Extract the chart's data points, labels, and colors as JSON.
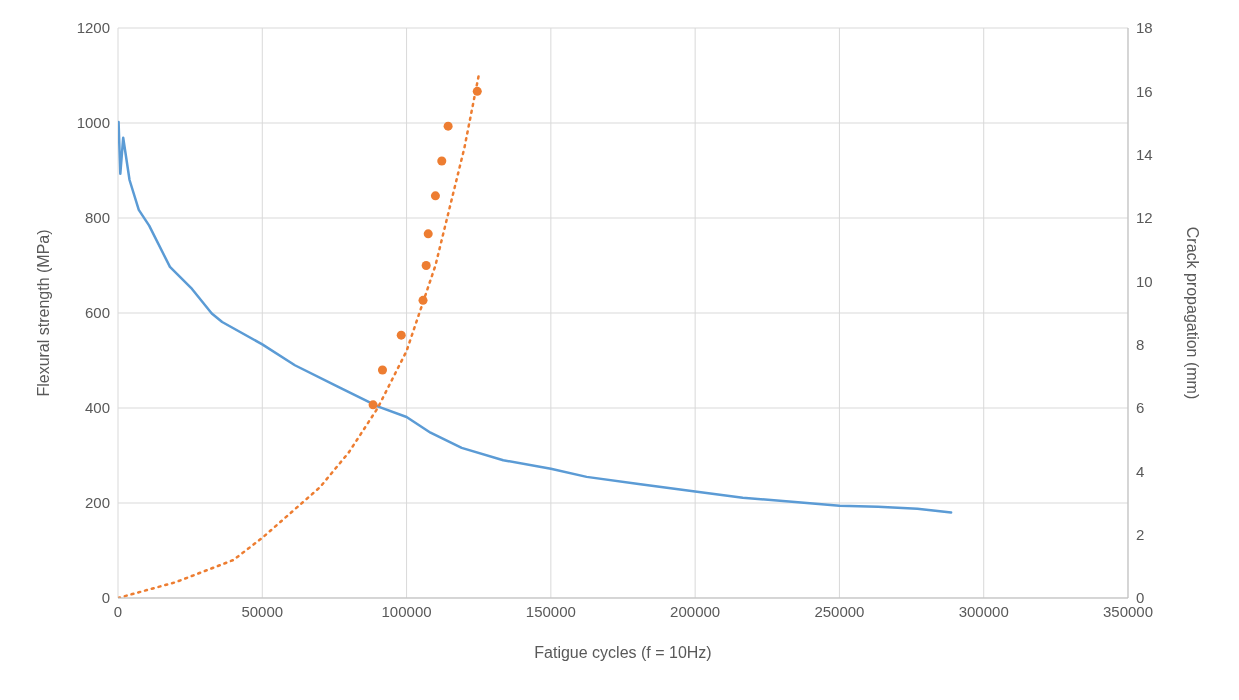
{
  "chart_data": {
    "type": "line",
    "xlabel": "Fatigue cycles (f = 10Hz)",
    "ylabel": "Flexural strength (MPa)",
    "y2label": "Crack propagation (mm)",
    "xlim": [
      0,
      350000
    ],
    "xticks": [
      0,
      50000,
      100000,
      150000,
      200000,
      250000,
      300000,
      350000
    ],
    "ylim": [
      0,
      1200
    ],
    "yticks": [
      0,
      200,
      400,
      600,
      800,
      1000,
      1200
    ],
    "y2lim": [
      0,
      18
    ],
    "y2ticks": [
      0,
      2,
      4,
      6,
      8,
      10,
      12,
      14,
      16,
      18
    ],
    "grid": true,
    "legend": false,
    "series": [
      {
        "axis": "y",
        "color": "#5b9bd5",
        "marker": "none",
        "line_style": "solid",
        "x": [
          0,
          200,
          800,
          1800,
          4000,
          7200,
          10800,
          18000,
          25300,
          32500,
          36100,
          50000,
          61300,
          75800,
          90200,
          100000,
          108300,
          119100,
          133500,
          150000,
          162400,
          180400,
          200000,
          216500,
          234600,
          250000,
          263400,
          277000,
          288700
        ],
        "values": [
          960,
          1002,
          893,
          969,
          880,
          817,
          784,
          697,
          653,
          599,
          581,
          534,
          490,
          446,
          403,
          381,
          348,
          316,
          290,
          272,
          255,
          240,
          224,
          211,
          202,
          194,
          192,
          188,
          180
        ]
      },
      {
        "type": "scatter",
        "axis": "y2",
        "color": "#ed7d31",
        "marker": "circle",
        "x": [
          88400,
          91650,
          98150,
          105700,
          106800,
          107500,
          110000,
          112200,
          114400,
          124500
        ],
        "values": [
          6.1,
          7.2,
          8.3,
          9.4,
          10.5,
          11.5,
          12.7,
          13.8,
          14.9,
          16.0
        ]
      },
      {
        "axis": "y2",
        "color": "#ed7d31",
        "marker": "none",
        "line_style": "dotted",
        "x": [
          0,
          20000,
          40000,
          50000,
          60000,
          70000,
          80000,
          90000,
          100000,
          110000,
          120000,
          125000
        ],
        "values": [
          0,
          0.5,
          1.2,
          1.9,
          2.7,
          3.5,
          4.6,
          6.0,
          7.8,
          10.5,
          14.2,
          16.5
        ]
      }
    ]
  }
}
